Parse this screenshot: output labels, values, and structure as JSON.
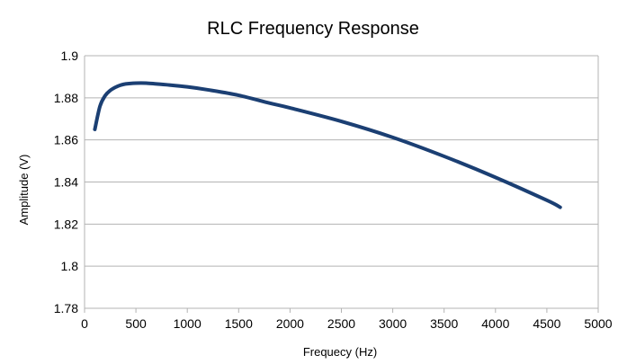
{
  "chart_data": {
    "type": "line",
    "title": "RLC Frequency Response",
    "xlabel": "Frequecy (Hz)",
    "ylabel": "Amplitude (V)",
    "xlim": [
      0,
      5000
    ],
    "ylim": [
      1.78,
      1.9
    ],
    "x_ticks": [
      "0",
      "500",
      "1000",
      "1500",
      "2000",
      "2500",
      "3000",
      "3500",
      "4000",
      "4500",
      "5000"
    ],
    "y_ticks": [
      "1.78",
      "1.8",
      "1.82",
      "1.84",
      "1.86",
      "1.88",
      "1.9"
    ],
    "grid": "horizontal",
    "legend": "none",
    "series": [
      {
        "color": "#1b3f73",
        "x": [
          100,
          150,
          200,
          250,
          300,
          350,
          400,
          500,
          600,
          700,
          800,
          1000,
          1200,
          1500,
          1800,
          2000,
          2500,
          3000,
          3500,
          4000,
          4500,
          4630
        ],
        "y": [
          1.865,
          1.876,
          1.881,
          1.8835,
          1.885,
          1.886,
          1.8866,
          1.887,
          1.887,
          1.8866,
          1.8862,
          1.8852,
          1.8838,
          1.8812,
          1.8775,
          1.8752,
          1.8688,
          1.8612,
          1.8522,
          1.8422,
          1.8313,
          1.828
        ]
      }
    ]
  }
}
